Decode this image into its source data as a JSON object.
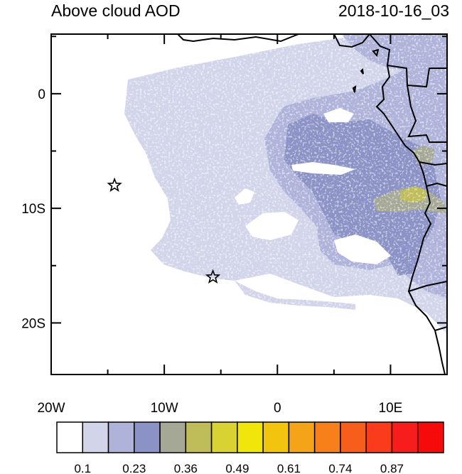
{
  "title": "Above cloud AOD",
  "timestamp": "2018-10-16_03",
  "map": {
    "lon_range": [
      -20,
      15
    ],
    "lat_range": [
      -24.5,
      5.2
    ],
    "x_ticks": [
      {
        "lon": -20,
        "label": "20W"
      },
      {
        "lon": -10,
        "label": "10W"
      },
      {
        "lon": 0,
        "label": "0"
      },
      {
        "lon": 10,
        "label": "10E"
      }
    ],
    "y_ticks": [
      {
        "lat": 0,
        "label": "0"
      },
      {
        "lat": -10,
        "label": "10S"
      },
      {
        "lat": -20,
        "label": "20S"
      }
    ],
    "markers": [
      {
        "name": "star-marker-1",
        "lon": -14.4,
        "lat": -8.0
      },
      {
        "name": "star-marker-2",
        "lon": -5.7,
        "lat": -16.0
      }
    ]
  },
  "colorbar": {
    "colors": [
      "#ffffff",
      "#d2d5ea",
      "#afb3da",
      "#8b92c5",
      "#a4a895",
      "#bfbc5a",
      "#d8d233",
      "#f0e60c",
      "#f3c40e",
      "#f5a318",
      "#f7801a",
      "#f85e1b",
      "#fa3c1c",
      "#f81d1d",
      "#f70a0a"
    ],
    "labels": [
      "0.1",
      "0.23",
      "0.36",
      "0.49",
      "0.61",
      "0.74",
      "0.87"
    ]
  }
}
